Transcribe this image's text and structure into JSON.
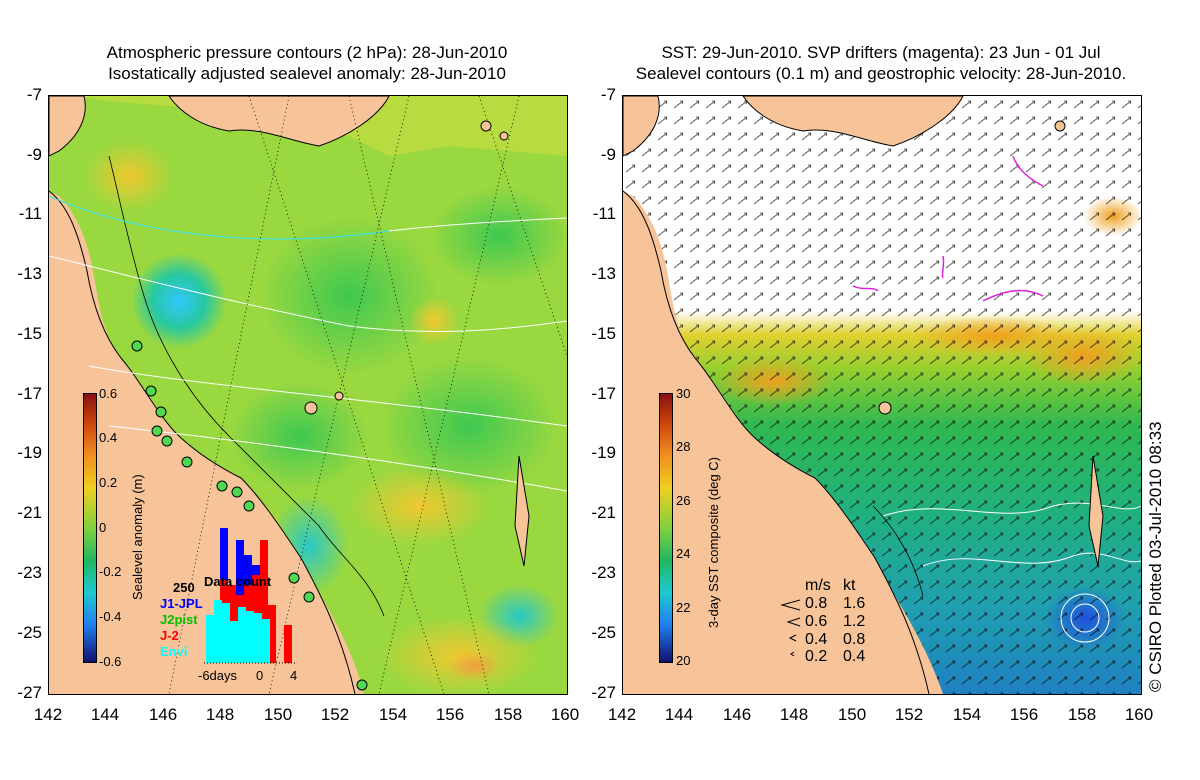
{
  "left_panel": {
    "title_line1": "Atmospheric pressure contours (2 hPa): 28-Jun-2010",
    "title_line2": "Isostatically adjusted sealevel anomaly: 28-Jun-2010",
    "colorbar": {
      "title": "Sealevel anomaly (m)",
      "ticks": [
        "0.6",
        "0.4",
        "0.2",
        "0",
        "-0.2",
        "-0.4",
        "-0.6"
      ],
      "range": [
        -0.6,
        0.6
      ]
    },
    "data_count": {
      "title": "Data count",
      "scale_label": "250",
      "series": [
        {
          "name": "J1-JPL",
          "color": "#0000ff"
        },
        {
          "name": "J2pist",
          "color": "#00c000"
        },
        {
          "name": "J-2",
          "color": "#ff0000"
        },
        {
          "name": "Envi",
          "color": "#00ffff"
        }
      ],
      "xlabels": [
        "-6days",
        "0",
        "4"
      ]
    }
  },
  "right_panel": {
    "title_line1": "SST: 29-Jun-2010. SVP drifters (magenta): 23 Jun - 01 Jul",
    "title_line2": "Sealevel contours (0.1 m) and geostrophic velocity: 28-Jun-2010.",
    "colorbar": {
      "title": "3-day SST composite (deg C)",
      "ticks": [
        "30",
        "28",
        "26",
        "24",
        "22",
        "20"
      ],
      "range": [
        20,
        30
      ]
    },
    "velocity_legend": {
      "header_ms": "m/s",
      "header_kt": "kt",
      "rows": [
        {
          "ms": "0.8",
          "kt": "1.6"
        },
        {
          "ms": "0.6",
          "kt": "1.2"
        },
        {
          "ms": "0.4",
          "kt": "0.8"
        },
        {
          "ms": "0.2",
          "kt": "0.4"
        }
      ]
    }
  },
  "axes": {
    "y_ticks": [
      "-7",
      "-9",
      "-11",
      "-13",
      "-15",
      "-17",
      "-19",
      "-21",
      "-23",
      "-25",
      "-27"
    ],
    "x_ticks": [
      "142",
      "144",
      "146",
      "148",
      "150",
      "152",
      "154",
      "156",
      "158",
      "160"
    ]
  },
  "credit": "© CSIRO Plotted 03-Jul-2010 08:33"
}
